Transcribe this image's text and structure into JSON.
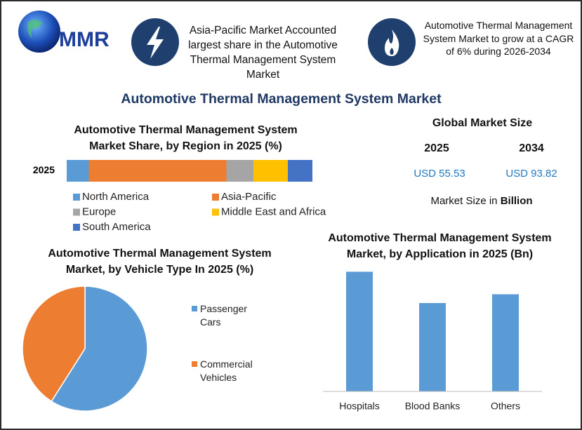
{
  "header": {
    "logo": "MMR",
    "fact1": "Asia-Pacific Market Accounted largest share in the Automotive Thermal Management System Market",
    "fact2": "Automotive Thermal Management System Market to grow at a CAGR of 6% during 2026-2034"
  },
  "title": "Automotive Thermal Management System Market",
  "market_size": {
    "title": "Global Market Size",
    "years": [
      "2025",
      "2034"
    ],
    "values": [
      "USD 55.53",
      "USD 93.82"
    ],
    "note": "Market Size in",
    "unit": "Billion"
  },
  "chart_data": [
    {
      "type": "stacked-bar",
      "title": "Automotive Thermal Management System Market Share, by Region in 2025 (%)",
      "categories": [
        "2025"
      ],
      "xlim": [
        0,
        100
      ],
      "series": [
        {
          "name": "North America",
          "color": "#5b9bd5",
          "values": [
            9
          ]
        },
        {
          "name": "Asia-Pacific",
          "color": "#ed7d31",
          "values": [
            56
          ]
        },
        {
          "name": "Europe",
          "color": "#a5a5a5",
          "values": [
            11
          ]
        },
        {
          "name": "Middle East and Africa",
          "color": "#ffc000",
          "values": [
            14
          ]
        },
        {
          "name": "South America",
          "color": "#4472c4",
          "values": [
            10
          ]
        }
      ]
    },
    {
      "type": "pie",
      "title": "Automotive Thermal Management System Market, by Vehicle Type In 2025 (%)",
      "categories": [
        "Passenger Cars",
        "Commercial Vehicles"
      ],
      "values": [
        59,
        41
      ],
      "colors": [
        "#5b9bd5",
        "#ed7d31"
      ]
    },
    {
      "type": "bar",
      "title": "Automotive Thermal Management System Market, by Application in 2025 (Bn)",
      "categories": [
        "Hospitals",
        "Blood Banks",
        "Others"
      ],
      "values": [
        21.8,
        16.1,
        17.7
      ],
      "color": "#5b9bd5",
      "ylim": [
        0,
        23
      ]
    }
  ]
}
